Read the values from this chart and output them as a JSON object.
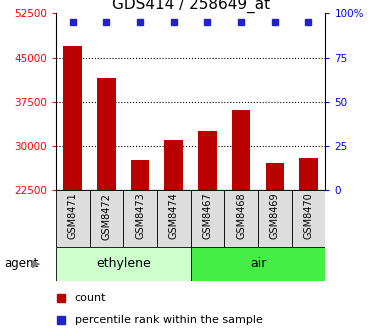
{
  "title": "GDS414 / 258649_at",
  "categories": [
    "GSM8471",
    "GSM8472",
    "GSM8473",
    "GSM8474",
    "GSM8467",
    "GSM8468",
    "GSM8469",
    "GSM8470"
  ],
  "counts": [
    47000,
    41500,
    27500,
    31000,
    32500,
    36000,
    27000,
    28000
  ],
  "bar_color": "#bb0000",
  "percentile_color": "#2222cc",
  "ylim_left": [
    22500,
    52500
  ],
  "ylim_right": [
    0,
    100
  ],
  "yticks_left": [
    22500,
    30000,
    37500,
    45000,
    52500
  ],
  "yticks_right": [
    0,
    25,
    50,
    75,
    100
  ],
  "ytick_right_labels": [
    "0",
    "25",
    "50",
    "75",
    "100%"
  ],
  "grid_lines": [
    30000,
    37500,
    45000
  ],
  "groups": [
    {
      "label": "ethylene",
      "indices": [
        0,
        1,
        2,
        3
      ],
      "color": "#ccffcc"
    },
    {
      "label": "air",
      "indices": [
        4,
        5,
        6,
        7
      ],
      "color": "#44ee44"
    }
  ],
  "agent_label": "agent",
  "legend_count_label": "count",
  "legend_percentile_label": "percentile rank within the sample",
  "background_color": "#ffffff",
  "title_fontsize": 11,
  "bar_width": 0.55,
  "label_bg_color": "#dddddd"
}
